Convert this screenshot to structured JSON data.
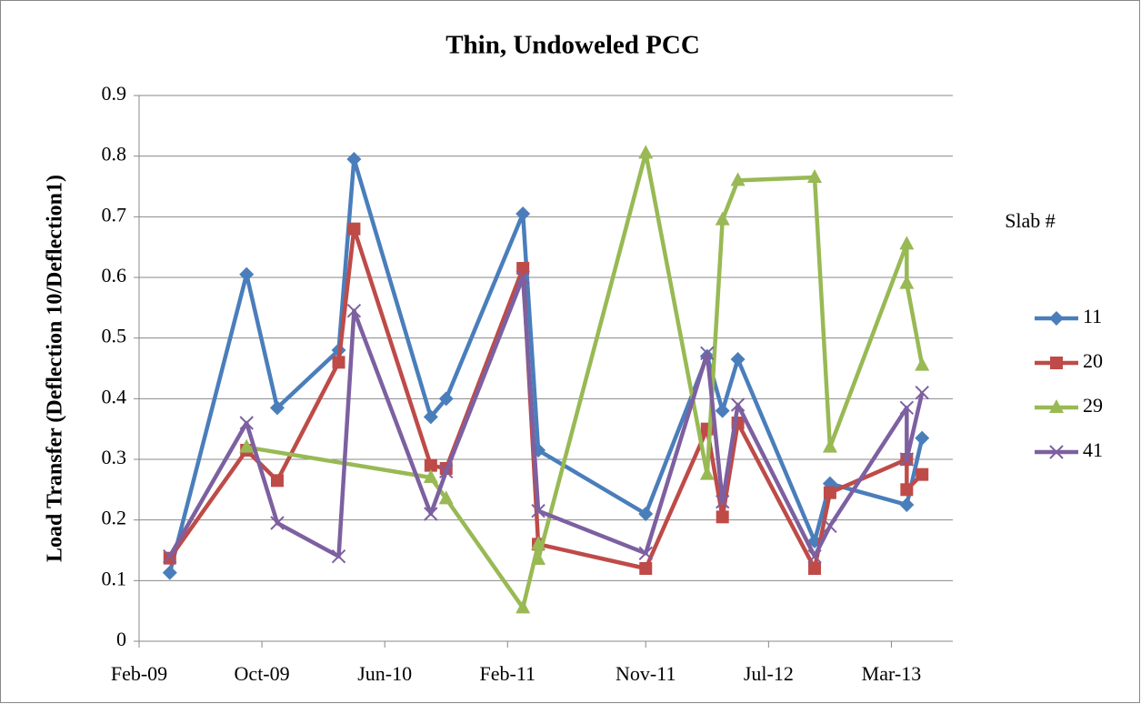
{
  "chart_data": {
    "type": "line",
    "title": "Thin, Undoweled PCC",
    "y_label": "Load Transfer (Deflection 10/Deflection1)",
    "legend_title": "Slab #",
    "legend_position": "right",
    "grid": true,
    "xlim": [
      "2009-02",
      "2013-07"
    ],
    "xticks": [
      {
        "value": "2009-02",
        "label": "Feb-09"
      },
      {
        "value": "2009-10",
        "label": "Oct-09"
      },
      {
        "value": "2010-06",
        "label": "Jun-10"
      },
      {
        "value": "2011-02",
        "label": "Feb-11"
      },
      {
        "value": "2011-11",
        "label": "Nov-11"
      },
      {
        "value": "2012-07",
        "label": "Jul-12"
      },
      {
        "value": "2013-03",
        "label": "Mar-13"
      }
    ],
    "ylim": [
      0,
      0.9
    ],
    "yticks": [
      0,
      0.1,
      0.2,
      0.3,
      0.4,
      0.5,
      0.6,
      0.7,
      0.8,
      0.9
    ],
    "series": [
      {
        "name": "11",
        "color": "#4a7ebb",
        "marker": "diamond",
        "x": [
          "2009-04",
          "2009-09",
          "2009-11",
          "2010-03",
          "2010-04",
          "2010-09",
          "2010-10",
          "2011-03",
          "2011-04",
          "2011-11",
          "2012-03",
          "2012-04",
          "2012-05",
          "2012-10",
          "2012-11",
          "2013-04",
          "2013-05"
        ],
        "values": [
          0.113,
          0.605,
          0.385,
          0.48,
          0.795,
          0.37,
          0.4,
          0.705,
          0.315,
          0.21,
          0.47,
          0.38,
          0.465,
          0.165,
          0.26,
          0.225,
          0.335
        ]
      },
      {
        "name": "20",
        "color": "#be4b48",
        "marker": "square",
        "x": [
          "2009-04",
          "2009-09",
          "2009-11",
          "2010-03",
          "2010-04",
          "2010-09",
          "2010-10",
          "2011-03",
          "2011-04",
          "2011-11",
          "2012-03",
          "2012-04",
          "2012-05",
          "2012-10",
          "2012-11",
          "2013-04",
          "2013-04",
          "2013-05"
        ],
        "values": [
          0.137,
          0.315,
          0.265,
          0.46,
          0.68,
          0.29,
          0.285,
          0.615,
          0.16,
          0.12,
          0.35,
          0.205,
          0.36,
          0.12,
          0.245,
          0.3,
          0.25,
          0.275
        ]
      },
      {
        "name": "29",
        "color": "#98b954",
        "marker": "triangle",
        "x": [
          "2009-09",
          "2010-09",
          "2010-10",
          "2011-03",
          "2011-04",
          "2011-04",
          "2011-11",
          "2012-03",
          "2012-04",
          "2012-05",
          "2012-10",
          "2012-11",
          "2013-04",
          "2013-04",
          "2013-05"
        ],
        "values": [
          0.32,
          0.27,
          0.235,
          0.055,
          0.16,
          0.135,
          0.805,
          0.275,
          0.695,
          0.76,
          0.765,
          0.32,
          0.655,
          0.59,
          0.455
        ]
      },
      {
        "name": "41",
        "color": "#7d60a0",
        "marker": "x",
        "x": [
          "2009-04",
          "2009-09",
          "2009-11",
          "2010-03",
          "2010-04",
          "2010-09",
          "2010-10",
          "2011-03",
          "2011-04",
          "2011-11",
          "2012-03",
          "2012-04",
          "2012-05",
          "2012-10",
          "2012-11",
          "2013-04",
          "2013-04",
          "2013-05"
        ],
        "values": [
          0.14,
          0.36,
          0.195,
          0.14,
          0.545,
          0.21,
          0.28,
          0.6,
          0.215,
          0.145,
          0.475,
          0.23,
          0.39,
          0.14,
          0.19,
          0.385,
          0.3,
          0.41
        ]
      }
    ]
  }
}
